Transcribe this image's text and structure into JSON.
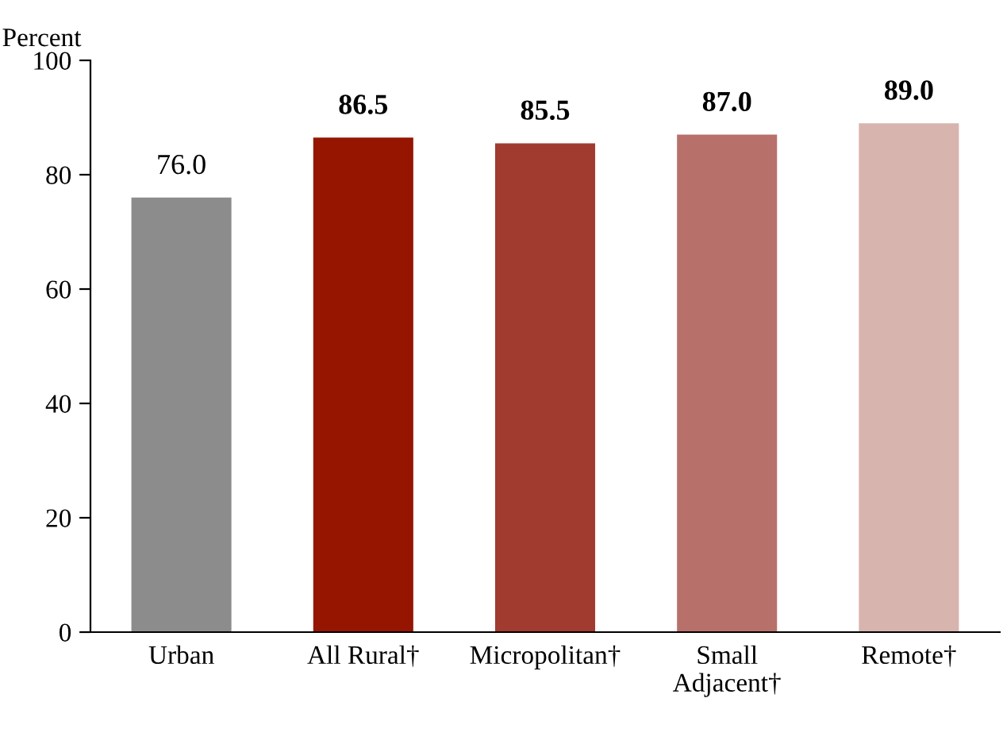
{
  "chart_data": {
    "type": "bar",
    "ylabel": "Percent",
    "categories": [
      "Urban",
      "All Rural†",
      "Micropolitan†",
      "Small\nAdjacent†",
      "Remote†"
    ],
    "values": [
      76.0,
      86.5,
      85.5,
      87.0,
      89.0
    ],
    "colors": [
      "#8c8c8c",
      "#951500",
      "#a23b2f",
      "#b8706a",
      "#d8b4af"
    ],
    "value_labels": [
      "76.0",
      "86.5",
      "85.5",
      "87.0",
      "89.0"
    ],
    "ylim": [
      0,
      100
    ],
    "yticks": [
      0,
      20,
      40,
      60,
      80,
      100
    ],
    "grid": false,
    "legend": false
  }
}
